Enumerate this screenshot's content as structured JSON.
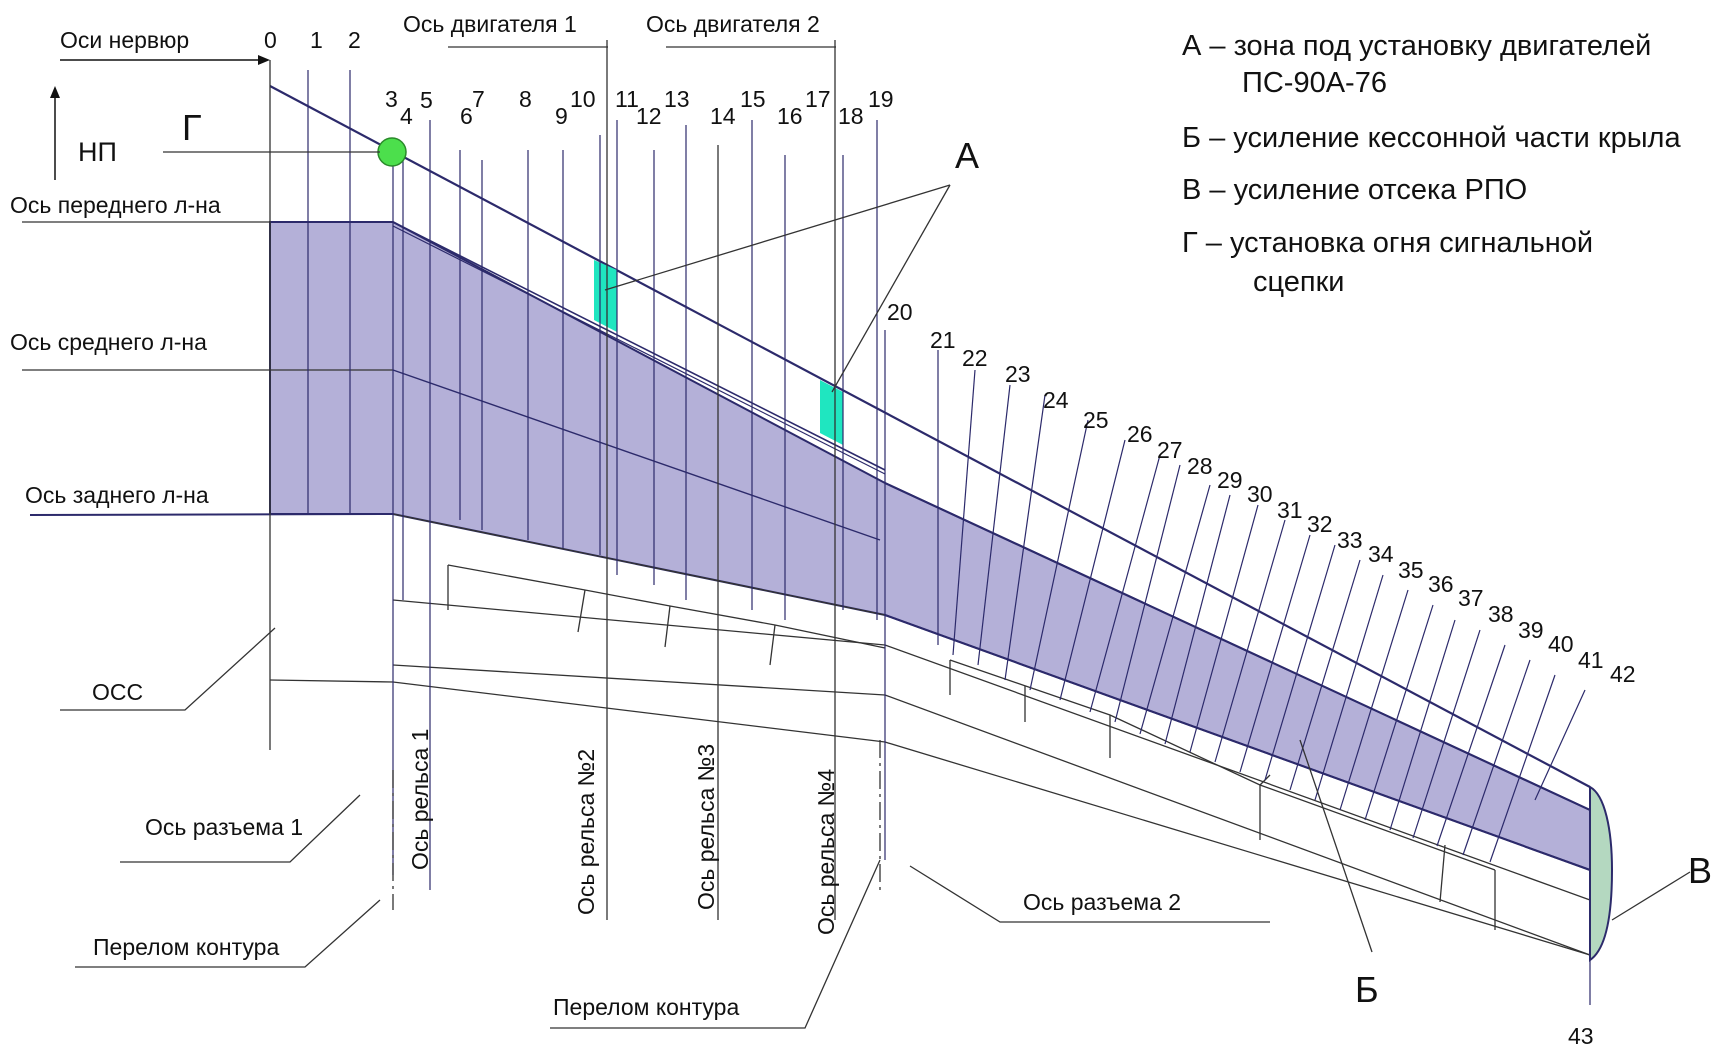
{
  "colors": {
    "caisson_fill": "#b4b0d8",
    "engine_zone_fill": "#1fe6c0",
    "rpo_fill": "#b4d8c0",
    "tow_light_fill": "#4cdf4c",
    "outline": "#2c2a6b"
  },
  "header": {
    "rib_axes": "Оси нервюр",
    "engine_axis_1": "Ось двигателя 1",
    "engine_axis_2": "Ось двигателя 2",
    "flight_direction": "НП"
  },
  "spar_axes": {
    "front": "Ось переднего л-на",
    "middle": "Ось среднего л-на",
    "rear": "Ось заднего л-на"
  },
  "bottom_labels": {
    "oss": "ОСС",
    "joint_1": "Ось разъема 1",
    "contour_break_1": "Перелом контура",
    "joint_2": "Ось разъема 2",
    "contour_break_2": "Перелом контура"
  },
  "rail_axes": [
    "Ось рельса 1",
    "Ось рельса №2",
    "Ось рельса №3",
    "Ось рельса №4"
  ],
  "letters": {
    "a": "А",
    "b": "Б",
    "v": "В",
    "g": "Г"
  },
  "legend": {
    "a_line1": "А – зона под установку   двигателей",
    "a_line2": "ПС-90А-76",
    "b": "Б – усиление кессонной части крыла",
    "v": "В – усиление отсека РПО",
    "g_line1": "Г – установка огня сигнальной",
    "g_line2": "сцепки"
  },
  "ribs": [
    "0",
    "1",
    "2",
    "3",
    "4",
    "5",
    "6",
    "7",
    "8",
    "9",
    "10",
    "11",
    "12",
    "13",
    "14",
    "15",
    "16",
    "17",
    "18",
    "19",
    "20",
    "21",
    "22",
    "23",
    "24",
    "25",
    "26",
    "27",
    "28",
    "29",
    "30",
    "31",
    "32",
    "33",
    "34",
    "35",
    "36",
    "37",
    "38",
    "39",
    "40",
    "41",
    "42",
    "43"
  ]
}
